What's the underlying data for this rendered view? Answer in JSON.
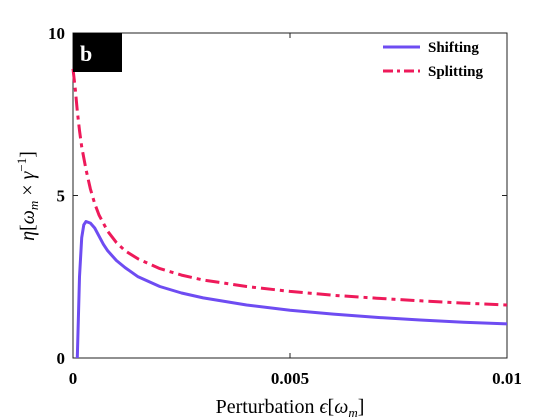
{
  "chart_data": {
    "type": "line",
    "panel_label": "b",
    "xlabel": "Perturbation ϵ[ω_m]",
    "ylabel": "η[ω_m × γ^−1]",
    "xlim": [
      0,
      0.01
    ],
    "ylim": [
      0,
      10
    ],
    "x_ticks": [
      "0",
      "0.005",
      "0.01"
    ],
    "y_ticks": [
      "0",
      "5",
      "10"
    ],
    "grid": false,
    "legend_position": "top-right",
    "series": [
      {
        "name": "Shifting",
        "color": "#6e4cf2",
        "line_style": "solid",
        "x": [
          0.0001,
          0.00015,
          0.0002,
          0.00025,
          0.0003,
          0.0004,
          0.0005,
          0.0006,
          0.0007,
          0.0008,
          0.001,
          0.0012,
          0.0015,
          0.002,
          0.0025,
          0.003,
          0.004,
          0.005,
          0.006,
          0.007,
          0.008,
          0.009,
          0.01
        ],
        "y": [
          0.0,
          2.5,
          3.7,
          4.1,
          4.2,
          4.15,
          4.0,
          3.75,
          3.5,
          3.3,
          3.0,
          2.78,
          2.5,
          2.2,
          2.0,
          1.85,
          1.63,
          1.47,
          1.35,
          1.25,
          1.17,
          1.1,
          1.05
        ]
      },
      {
        "name": "Splitting",
        "color": "#ee1a5a",
        "line_style": "dash-dot",
        "x": [
          0.0,
          5e-05,
          0.0001,
          0.00015,
          0.0002,
          0.0003,
          0.0004,
          0.0005,
          0.0006,
          0.0008,
          0.001,
          0.0012,
          0.0015,
          0.002,
          0.0025,
          0.003,
          0.004,
          0.005,
          0.006,
          0.007,
          0.008,
          0.009,
          0.01
        ],
        "y": [
          8.9,
          8.3,
          7.6,
          7.0,
          6.5,
          5.8,
          5.2,
          4.75,
          4.4,
          3.9,
          3.55,
          3.3,
          3.05,
          2.75,
          2.55,
          2.4,
          2.2,
          2.05,
          1.93,
          1.84,
          1.76,
          1.69,
          1.63
        ]
      }
    ]
  }
}
